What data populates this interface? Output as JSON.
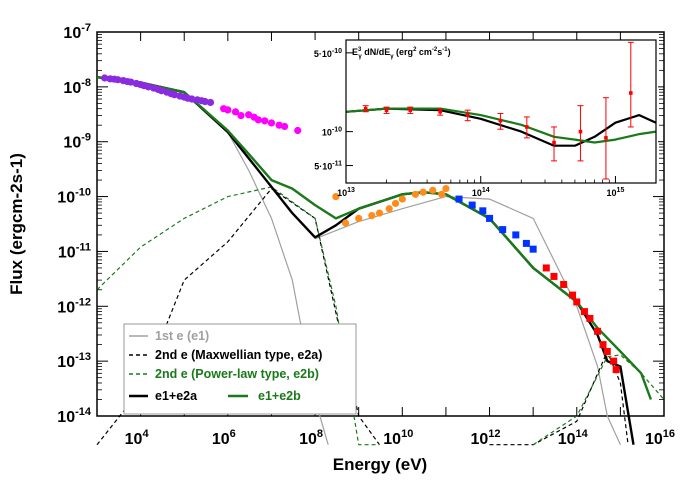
{
  "chart_data": [
    {
      "type": "scatter",
      "title": "",
      "xlabel": "Energy (eV)",
      "ylabel": "Flux (ergcm-2s-1)",
      "xscale": "log",
      "yscale": "log",
      "xlim": [
        1000,
        1e+16
      ],
      "ylim": [
        1e-14,
        1e-07
      ],
      "x_tick_labels": [
        "10^4",
        "10^6",
        "10^8",
        "10^10",
        "10^12",
        "10^14",
        "10^16"
      ],
      "y_tick_labels": [
        "10^-7",
        "10^-8",
        "10^-9",
        "10^-10",
        "10^-11",
        "10^-12",
        "10^-13",
        "10^-14"
      ],
      "legend": {
        "position": "bottom-left",
        "entries": [
          {
            "label": "1st e (e1)",
            "color": "#a0a0a0",
            "style": "solid"
          },
          {
            "label": "2nd e (Maxwellian type, e2a)",
            "color": "#000000",
            "style": "dashed"
          },
          {
            "label": "2nd e (Power-law type, e2b)",
            "color": "#1a7a1a",
            "style": "dashed"
          },
          {
            "label": "e1+e2a",
            "color": "#000000",
            "style": "solid"
          },
          {
            "label": "e1+e2b",
            "color": "#1a7a1a",
            "style": "solid"
          }
        ]
      },
      "series": [
        {
          "name": "1st e (e1)",
          "kind": "line",
          "color": "#a0a0a0",
          "dash": "solid",
          "x": [
            1000,
            10000,
            100000,
            1000000,
            3000000,
            10000000,
            30000000,
            100000000,
            200000000
          ],
          "y": [
            1.5e-08,
            1.2e-08,
            8e-09,
            1.5e-09,
            3e-10,
            4e-11,
            3e-12,
            2e-14,
            1e-15
          ],
          "x2": [
            100000000,
            1000000000,
            10000000000,
            100000000000,
            1000000000000,
            10000000000000,
            100000000000000,
            300000000000000,
            500000000000000,
            1000000000000000
          ],
          "y2": [
            1.7e-11,
            3.5e-11,
            6e-11,
            1e-10,
            9e-11,
            4e-11,
            1e-12,
            8e-14,
            1e-14,
            1e-17
          ]
        },
        {
          "name": "2nd e (Maxwellian type, e2a)",
          "kind": "line",
          "color": "#000000",
          "dash": "dashed",
          "x": [
            1000,
            10000,
            100000,
            1000000,
            10000000,
            100000000,
            1000000000,
            3000000000
          ],
          "y": [
            1e-17,
            3e-14,
            3e-12,
            1.5e-11,
            1.4e-10,
            4e-11,
            1e-14,
            1e-17
          ],
          "x2": [
            1000000000000,
            10000000000000,
            100000000000000,
            500000000000000,
            1000000000000000,
            1500000000000000
          ],
          "y2": [
            1e-17,
            1e-15,
            8e-15,
            1.5e-13,
            4e-14,
            1e-17
          ]
        },
        {
          "name": "2nd e (Power-law type, e2b)",
          "kind": "line",
          "color": "#1a7a1a",
          "dash": "dashed",
          "x": [
            1000,
            10000,
            100000,
            1000000,
            10000000,
            100000000,
            300000000,
            1000000000,
            3000000000
          ],
          "y": [
            2e-12,
            1.2e-11,
            4e-11,
            1e-10,
            1.5e-10,
            4e-11,
            1e-12,
            1e-15,
            1e-17
          ],
          "x2": [
            10000000000000,
            100000000000000,
            500000000000000,
            1000000000000000,
            3000000000000000,
            10000000000000000
          ],
          "y2": [
            1e-15,
            1e-14,
            1.2e-13,
            1.3e-13,
            6e-14,
            2e-14
          ]
        },
        {
          "name": "e1+e2a",
          "kind": "line",
          "color": "#000000",
          "dash": "solid",
          "x": [
            1000,
            10000,
            100000,
            1000000,
            3000000,
            10000000,
            30000000,
            100000000,
            300000000,
            1000000000,
            10000000000,
            30000000000,
            100000000000,
            1000000000000,
            10000000000000,
            100000000000000,
            300000000000000,
            500000000000000,
            1000000000000000,
            2000000000000000
          ],
          "y": [
            1.5e-08,
            1.2e-08,
            8e-09,
            1.5e-09,
            5e-10,
            1.5e-10,
            5e-11,
            1.8e-11,
            3e-11,
            6e-11,
            1.1e-10,
            1.2e-10,
            1.1e-10,
            4e-11,
            5e-12,
            1.2e-12,
            3e-13,
            1e-13,
            8e-14,
            1e-15
          ]
        },
        {
          "name": "e1+e2b",
          "kind": "line",
          "color": "#1a7a1a",
          "dash": "solid",
          "x": [
            1000,
            10000,
            100000,
            1000000,
            3000000,
            10000000,
            30000000,
            100000000,
            300000000,
            1000000000,
            10000000000,
            30000000000,
            100000000000,
            1000000000000,
            10000000000000,
            100000000000000,
            300000000000000,
            1000000000000000,
            3000000000000000,
            5000000000000000
          ],
          "y": [
            1.5e-08,
            1.2e-08,
            8e-09,
            1.6e-09,
            6e-10,
            2e-10,
            1.4e-10,
            7e-11,
            4e-11,
            6e-11,
            1.1e-10,
            1.2e-10,
            1.1e-10,
            4e-11,
            5e-12,
            1.2e-12,
            4e-13,
            1.5e-13,
            6e-14,
            2e-14
          ]
        },
        {
          "name": "",
          "kind": "points",
          "marker": "circle",
          "color": "#8a2be2",
          "x": [
            1500,
            2000,
            2500,
            3000,
            4000,
            5000,
            6000,
            8000,
            10000,
            12000,
            15000,
            20000,
            25000,
            30000,
            40000,
            50000,
            60000,
            80000,
            100000,
            120000,
            150000,
            200000,
            250000,
            300000,
            400000
          ],
          "y": [
            1.45e-08,
            1.4e-08,
            1.38e-08,
            1.35e-08,
            1.3e-08,
            1.25e-08,
            1.22e-08,
            1.15e-08,
            1.1e-08,
            1.05e-08,
            1e-08,
            9.5e-09,
            9e-09,
            8.5e-09,
            8e-09,
            7.5e-09,
            7.2e-09,
            6.8e-09,
            6.5e-09,
            6.2e-09,
            6e-09,
            5.8e-09,
            5.6e-09,
            5.4e-09,
            5.2e-09
          ]
        },
        {
          "name": "",
          "kind": "points",
          "marker": "circle",
          "color": "#ff00ff",
          "x": [
            800000,
            1000000,
            1500000,
            2000000,
            3000000,
            4000000,
            5000000,
            7000000,
            10000000,
            15000000,
            20000000,
            40000000
          ],
          "y": [
            4e-09,
            3.8e-09,
            3.5e-09,
            3e-09,
            3.1e-09,
            2.8e-09,
            2.5e-09,
            2.4e-09,
            2.2e-09,
            2e-09,
            1.9e-09,
            1.6e-09
          ]
        },
        {
          "name": "",
          "kind": "points",
          "marker": "circle",
          "color": "#ff8c1a",
          "x": [
            100000000,
            300000000,
            500000000,
            1000000000,
            2000000000,
            3000000000,
            5000000000,
            7000000000,
            10000000000,
            20000000000,
            30000000000,
            50000000000,
            80000000000,
            100000000000
          ],
          "y": [
            2.2e-10,
            1e-10,
            3.3e-11,
            4e-11,
            4.5e-11,
            5e-11,
            6e-11,
            7.5e-11,
            9e-11,
            1.1e-10,
            1.2e-10,
            1.3e-10,
            1.1e-10,
            1.4e-10
          ]
        },
        {
          "name": "",
          "kind": "points",
          "marker": "square",
          "color": "#0033ff",
          "x": [
            200000000000,
            400000000000,
            700000000000,
            1000000000000,
            2000000000000,
            4000000000000,
            7000000000000,
            10000000000000
          ],
          "y": [
            9e-11,
            7e-11,
            5.5e-11,
            4e-11,
            2.5e-11,
            2e-11,
            1.4e-11,
            1.1e-11
          ]
        },
        {
          "name": "",
          "kind": "points",
          "marker": "square",
          "color": "#ff0000",
          "x": [
            20000000000000,
            30000000000000,
            50000000000000,
            80000000000000,
            100000000000000,
            150000000000000,
            200000000000000,
            300000000000000,
            400000000000000,
            500000000000000,
            700000000000000,
            800000000000000
          ],
          "y": [
            5e-12,
            3.5e-12,
            2.5e-12,
            1.6e-12,
            1.2e-12,
            8e-13,
            6e-13,
            3.5e-13,
            2e-13,
            1.5e-13,
            1e-13,
            7e-14
          ]
        }
      ]
    },
    {
      "type": "scatter",
      "title": "E_γ^3 dN/dE_γ (erg^2 cm^-2 s^-1)",
      "xscale": "log",
      "yscale": "log",
      "xlim": [
        10000000000000,
        2000000000000000
      ],
      "ylim": [
        3.5e-11,
        6.5e-10
      ],
      "x_tick_labels": [
        "10^13",
        "10^14",
        "10^15"
      ],
      "y_tick_labels": [
        "5·10^-10",
        "10^-10",
        "5·10^-11"
      ],
      "series": [
        {
          "name": "e1+e2a",
          "kind": "line",
          "color": "#000000",
          "x": [
            10000000000000,
            20000000000000,
            50000000000000,
            100000000000000,
            200000000000000,
            350000000000000,
            500000000000000,
            700000000000000,
            1000000000000000,
            1500000000000000,
            2000000000000000
          ],
          "y": [
            1.5e-10,
            1.6e-10,
            1.55e-10,
            1.3e-10,
            1e-10,
            7.5e-11,
            7.5e-11,
            9e-11,
            1.2e-10,
            1.4e-10,
            1.2e-10
          ]
        },
        {
          "name": "e1+e2b",
          "kind": "line",
          "color": "#1a7a1a",
          "x": [
            10000000000000,
            20000000000000,
            50000000000000,
            100000000000000,
            200000000000000,
            350000000000000,
            500000000000000,
            700000000000000,
            1000000000000000,
            1500000000000000,
            2000000000000000
          ],
          "y": [
            1.5e-10,
            1.6e-10,
            1.6e-10,
            1.4e-10,
            1.15e-10,
            9e-11,
            8.5e-11,
            8e-11,
            8.5e-11,
            9.5e-11,
            1e-10
          ]
        },
        {
          "name": "",
          "kind": "points",
          "marker": "square",
          "color": "#ff0000",
          "x": [
            14000000000000,
            20000000000000,
            30000000000000,
            50000000000000,
            80000000000000,
            140000000000000,
            220000000000000,
            350000000000000,
            550000000000000,
            850000000000000,
            1300000000000000
          ],
          "y": [
            1.6e-10,
            1.55e-10,
            1.55e-10,
            1.5e-10,
            1.4e-10,
            1.25e-10,
            1.1e-10,
            8e-11,
            1e-10,
            8.8e-11,
            2.2e-10
          ],
          "yerr_lo": [
            1.5e-10,
            1.45e-10,
            1.45e-10,
            1.4e-10,
            1.25e-10,
            1.05e-10,
            8.8e-11,
            5.5e-11,
            5.5e-11,
            3.8e-11,
            1.1e-10
          ],
          "yerr_hi": [
            1.7e-10,
            1.65e-10,
            1.65e-10,
            1.6e-10,
            1.55e-10,
            1.45e-10,
            1.35e-10,
            1.1e-10,
            1.7e-10,
            2e-10,
            6.2e-10
          ]
        }
      ]
    }
  ]
}
